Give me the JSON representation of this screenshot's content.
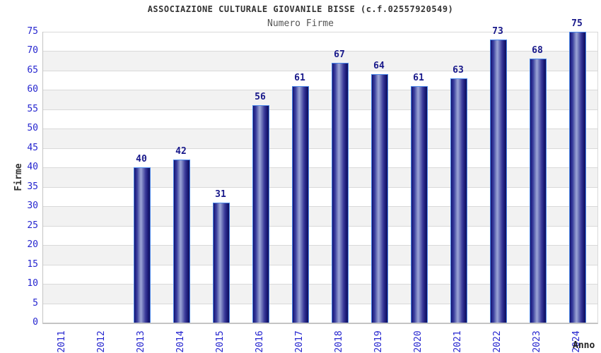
{
  "chart_data": {
    "type": "bar",
    "title": "ASSOCIAZIONE CULTURALE GIOVANILE BISSE (c.f.02557920549)",
    "subtitle": "Numero Firme",
    "xlabel": "Anno",
    "ylabel": "Firme",
    "categories": [
      "2011",
      "2012",
      "2013",
      "2014",
      "2015",
      "2016",
      "2017",
      "2018",
      "2019",
      "2020",
      "2021",
      "2022",
      "2023",
      "2024"
    ],
    "values": [
      null,
      null,
      40,
      42,
      31,
      56,
      61,
      67,
      64,
      61,
      63,
      73,
      68,
      75
    ],
    "ylim": [
      0,
      75
    ],
    "ytick_step": 5,
    "grid": true,
    "alternating_bands": true,
    "legend": "none"
  },
  "colors": {
    "band": "#f2f2f2",
    "gridline": "#d9d9d9",
    "axis_line": "#c4c4c4",
    "tick_label": "#2626cf",
    "value_label": "#18188a",
    "title": "#333333",
    "subtitle": "#555555",
    "bar_edge_highlight": "#4a86e8",
    "bar_dark": "#10105a",
    "bar_light": "#9aa2d6"
  }
}
